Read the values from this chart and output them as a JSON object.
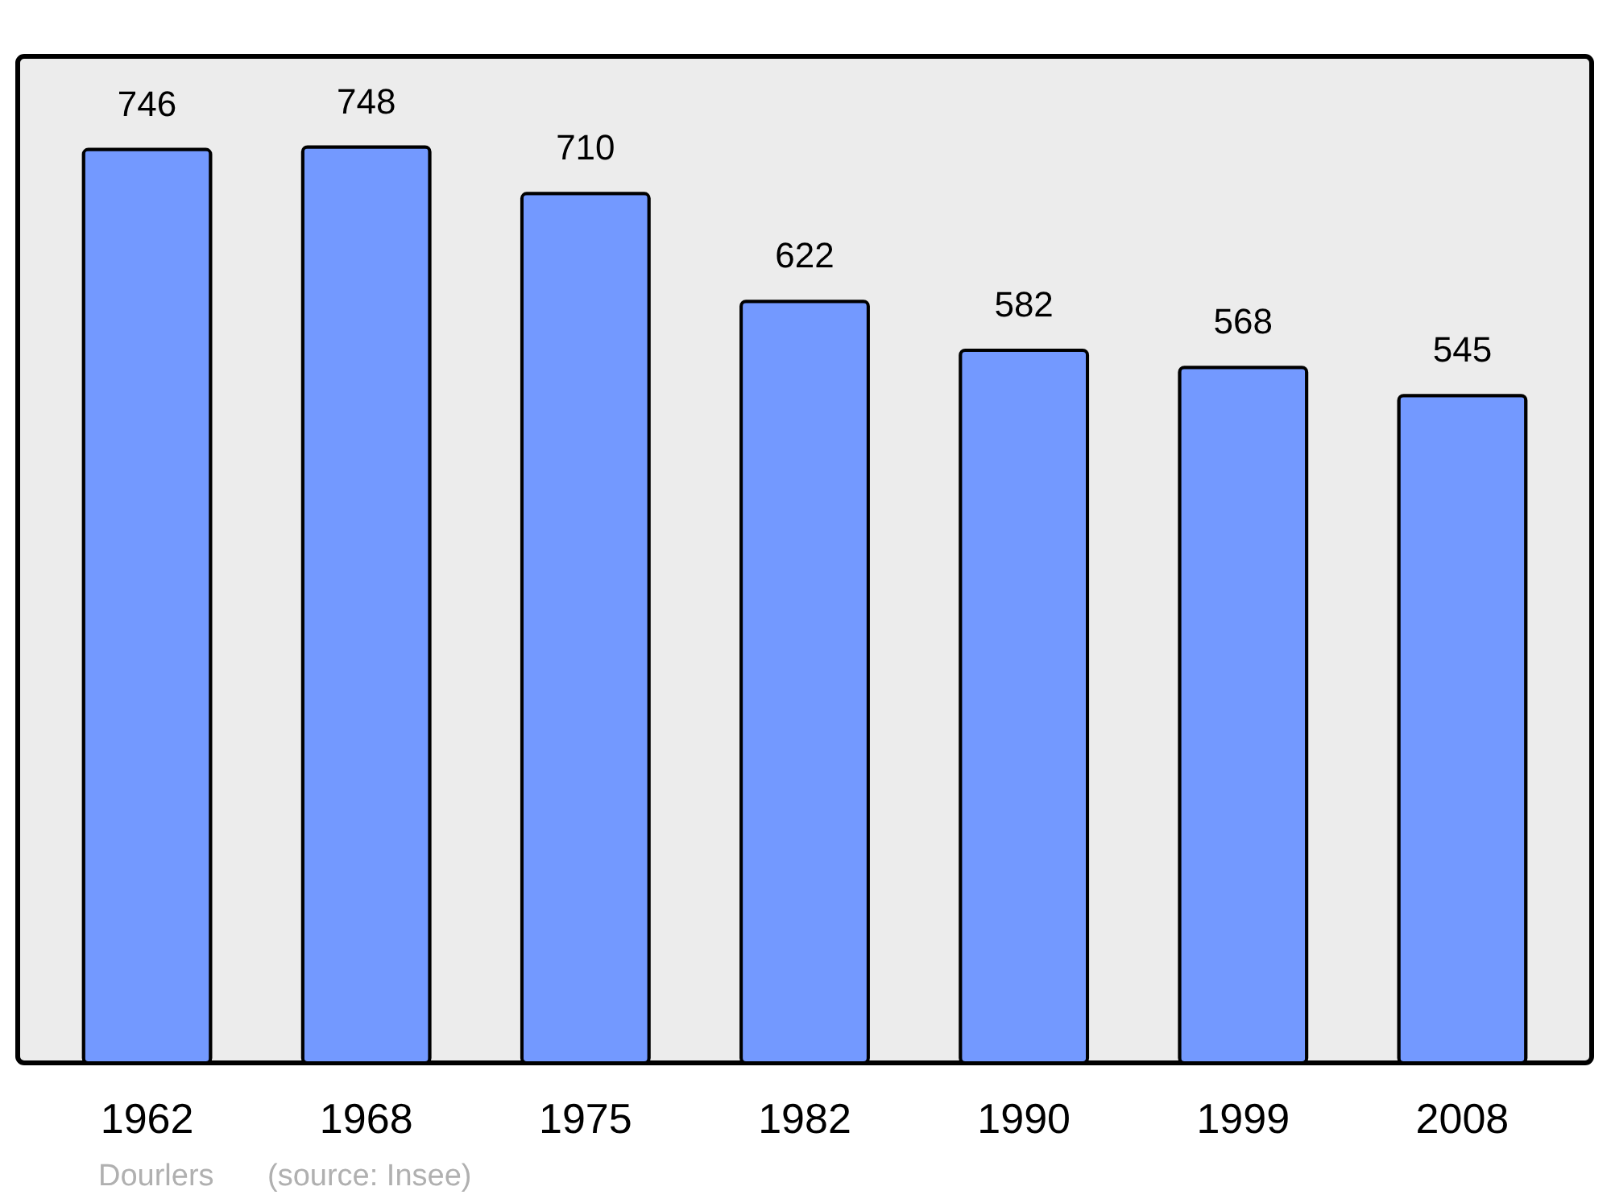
{
  "chart_data": {
    "type": "bar",
    "categories": [
      "1962",
      "1968",
      "1975",
      "1982",
      "1990",
      "1999",
      "2008"
    ],
    "values": [
      746,
      748,
      710,
      622,
      582,
      568,
      545
    ],
    "color": "#7399ff",
    "ylim": [
      0,
      822
    ],
    "data_labels": true,
    "tick_labels": "x",
    "grid": false,
    "annotations": [
      "Dourlers",
      "(source: Insee)"
    ]
  }
}
